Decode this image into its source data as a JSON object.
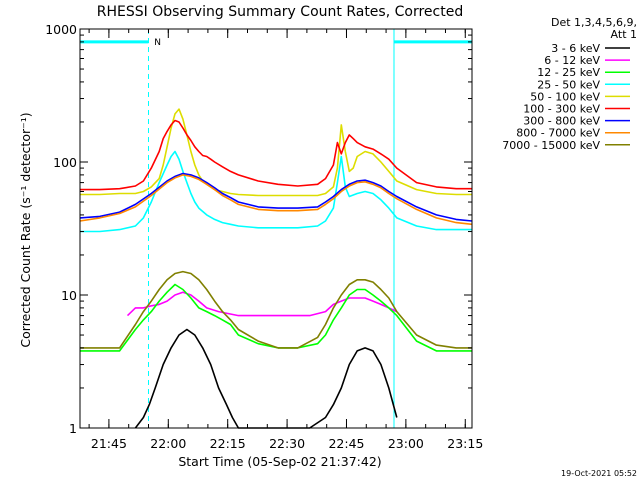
{
  "chart_data": {
    "type": "line",
    "title": "RHESSI Observing Summary Count Rates, Corrected",
    "xlabel": "Start Time (05-Sep-02 21:37:42)",
    "ylabel": "Corrected Count Rate (s⁻¹ detector⁻¹)",
    "yscale": "log",
    "ylim": [
      1,
      1000
    ],
    "xlim_minutes_after_start": [
      0,
      99
    ],
    "x_unit": "minutes after 21:37:42 UT",
    "y_ticks": [
      {
        "value": 1,
        "label": "1"
      },
      {
        "value": 10,
        "label": "10"
      },
      {
        "value": 100,
        "label": "100"
      },
      {
        "value": 1000,
        "label": "1000"
      }
    ],
    "x_ticks": [
      {
        "minutes": 7.3,
        "label": "21:45"
      },
      {
        "minutes": 22.3,
        "label": "22:00"
      },
      {
        "minutes": 37.3,
        "label": "22:15"
      },
      {
        "minutes": 52.3,
        "label": "22:30"
      },
      {
        "minutes": 67.3,
        "label": "22:45"
      },
      {
        "minutes": 82.3,
        "label": "23:00"
      },
      {
        "minutes": 97.3,
        "label": "23:15"
      }
    ],
    "legend_header": [
      "Det 1,3,4,5,6,9,",
      "Att 1"
    ],
    "legend_position": "right",
    "annotations": [
      {
        "text": "N",
        "x_minutes": 17.5,
        "y": 800,
        "color": "#00ffff"
      }
    ],
    "night_intervals_minutes": [
      [
        0,
        17.3
      ],
      [
        79.3,
        99
      ]
    ],
    "series": [
      {
        "name": "3 - 6 keV",
        "color": "#000000",
        "x": [
          14,
          16,
          17.5,
          19,
          21,
          23,
          25,
          27,
          29,
          31,
          33,
          35,
          37,
          38.5,
          40,
          46,
          52,
          58,
          62,
          64,
          66,
          68,
          70,
          72,
          74,
          76,
          78,
          80
        ],
        "y": [
          1,
          1.2,
          1.5,
          2,
          3,
          4,
          5,
          5.5,
          5,
          4,
          3,
          2,
          1.5,
          1.2,
          1,
          1,
          1,
          1,
          1.2,
          1.5,
          2,
          3,
          3.8,
          4,
          3.8,
          3,
          2,
          1.2
        ]
      },
      {
        "name": "6 - 12 keV",
        "color": "#ff00ff",
        "x": [
          12,
          14,
          16,
          18,
          20,
          22,
          24,
          26,
          28,
          30,
          32,
          35,
          40,
          50,
          58,
          62,
          64,
          66,
          68,
          70,
          72,
          74,
          76,
          78,
          80
        ],
        "y": [
          7,
          8,
          8,
          8.3,
          8.5,
          9,
          10,
          10.5,
          10,
          9,
          8,
          7.5,
          7,
          7,
          7,
          7.5,
          8.5,
          9,
          9.5,
          9.5,
          9.5,
          9,
          8.5,
          8,
          7.5
        ]
      },
      {
        "name": "12 - 25 keV",
        "color": "#00ff00",
        "x": [
          0,
          10,
          14,
          16,
          18,
          20,
          22,
          24,
          26,
          28,
          30,
          32,
          34,
          36,
          38,
          40,
          45,
          50,
          55,
          60,
          62,
          64,
          66,
          68,
          70,
          72,
          74,
          76,
          78,
          80,
          85,
          90,
          95,
          99
        ],
        "y": [
          3.8,
          3.8,
          5.5,
          6.5,
          7.5,
          9,
          10.5,
          12,
          11,
          9.5,
          8,
          7.5,
          7,
          6.5,
          6,
          5,
          4.3,
          4,
          4,
          4.3,
          5,
          6.5,
          8,
          10,
          11,
          11,
          10,
          9,
          8,
          7,
          4.5,
          3.8,
          3.8,
          3.8
        ]
      },
      {
        "name": "25 - 50 keV",
        "color": "#00ffff",
        "x": [
          0,
          5,
          10,
          14,
          16,
          18,
          20,
          22,
          23,
          24,
          25,
          26,
          27,
          28,
          29,
          30,
          32,
          34,
          36,
          38,
          40,
          45,
          50,
          55,
          60,
          62,
          64,
          65,
          66,
          67,
          68,
          70,
          72,
          74,
          76,
          78,
          80,
          85,
          90,
          95,
          99
        ],
        "y": [
          30,
          30,
          31,
          33,
          38,
          50,
          70,
          95,
          110,
          120,
          105,
          85,
          70,
          58,
          50,
          45,
          40,
          37,
          35,
          34,
          33,
          32,
          32,
          32,
          33,
          36,
          45,
          70,
          110,
          65,
          55,
          58,
          60,
          58,
          52,
          45,
          38,
          33,
          31,
          31,
          31
        ]
      },
      {
        "name": "50 - 100 keV",
        "color": "#dddd00",
        "x": [
          0,
          5,
          10,
          14,
          16,
          18,
          20,
          21,
          22,
          23,
          24,
          25,
          26,
          27,
          28,
          29,
          30,
          31,
          32,
          33,
          34,
          36,
          38,
          40,
          45,
          50,
          55,
          60,
          62,
          64,
          65,
          66,
          67,
          68,
          69,
          70,
          72,
          74,
          76,
          78,
          80,
          85,
          90,
          95,
          99
        ],
        "y": [
          57,
          57,
          58,
          58,
          60,
          65,
          75,
          95,
          130,
          180,
          230,
          250,
          210,
          160,
          120,
          95,
          80,
          72,
          68,
          65,
          62,
          60,
          58,
          57,
          56,
          56,
          56,
          56,
          58,
          65,
          90,
          190,
          120,
          85,
          90,
          110,
          120,
          115,
          100,
          85,
          72,
          62,
          58,
          57,
          57
        ]
      },
      {
        "name": "100 - 300 keV",
        "color": "#ff0000",
        "x": [
          0,
          5,
          10,
          14,
          16,
          18,
          20,
          21,
          22,
          23,
          24,
          25,
          26,
          27,
          28,
          29,
          30,
          31,
          32,
          33,
          34,
          36,
          38,
          40,
          45,
          50,
          55,
          60,
          62,
          64,
          65,
          66,
          67,
          68,
          69,
          70,
          72,
          74,
          76,
          78,
          80,
          85,
          90,
          95,
          99
        ],
        "y": [
          62,
          62,
          63,
          66,
          72,
          90,
          120,
          150,
          170,
          190,
          205,
          200,
          180,
          160,
          145,
          130,
          120,
          112,
          110,
          105,
          100,
          92,
          85,
          80,
          72,
          68,
          66,
          68,
          75,
          95,
          140,
          115,
          140,
          160,
          150,
          140,
          130,
          125,
          115,
          105,
          90,
          70,
          65,
          63,
          63
        ]
      },
      {
        "name": "300 - 800 keV",
        "color": "#0000ff",
        "x": [
          0,
          5,
          10,
          14,
          18,
          22,
          24,
          26,
          28,
          30,
          32,
          34,
          36,
          38,
          40,
          45,
          50,
          55,
          60,
          62,
          64,
          66,
          68,
          70,
          72,
          74,
          76,
          78,
          80,
          85,
          90,
          95,
          99
        ],
        "y": [
          38,
          39,
          42,
          48,
          58,
          72,
          78,
          82,
          80,
          76,
          70,
          64,
          58,
          54,
          50,
          46,
          45,
          45,
          46,
          50,
          55,
          62,
          68,
          72,
          73,
          70,
          66,
          60,
          55,
          46,
          40,
          37,
          36
        ]
      },
      {
        "name": "800 - 7000 keV",
        "color": "#ff8800",
        "x": [
          0,
          5,
          10,
          14,
          18,
          22,
          24,
          26,
          28,
          30,
          32,
          34,
          36,
          38,
          40,
          45,
          50,
          55,
          60,
          62,
          64,
          66,
          68,
          70,
          72,
          74,
          76,
          78,
          80,
          85,
          90,
          95,
          99
        ],
        "y": [
          36,
          38,
          41,
          46,
          56,
          70,
          76,
          80,
          78,
          74,
          68,
          62,
          56,
          52,
          48,
          44,
          43,
          43,
          44,
          48,
          53,
          60,
          66,
          70,
          71,
          68,
          64,
          58,
          53,
          44,
          38,
          35,
          34
        ]
      },
      {
        "name": "7000 - 15000 keV",
        "color": "#808000",
        "x": [
          0,
          10,
          14,
          16,
          18,
          20,
          22,
          24,
          26,
          28,
          30,
          32,
          34,
          36,
          38,
          40,
          45,
          50,
          55,
          60,
          62,
          64,
          66,
          68,
          70,
          72,
          74,
          76,
          78,
          80,
          85,
          90,
          95,
          99
        ],
        "y": [
          4,
          4,
          6,
          7.5,
          9,
          11,
          13,
          14.5,
          15,
          14.5,
          13,
          11,
          9,
          7.5,
          6.5,
          5.5,
          4.5,
          4,
          4,
          4.8,
          6,
          8,
          10,
          12,
          13,
          13,
          12.5,
          11,
          9.5,
          7.5,
          5,
          4.2,
          4,
          4
        ]
      }
    ]
  },
  "footer": {
    "timestamp": "19-Oct-2021 05:52"
  }
}
